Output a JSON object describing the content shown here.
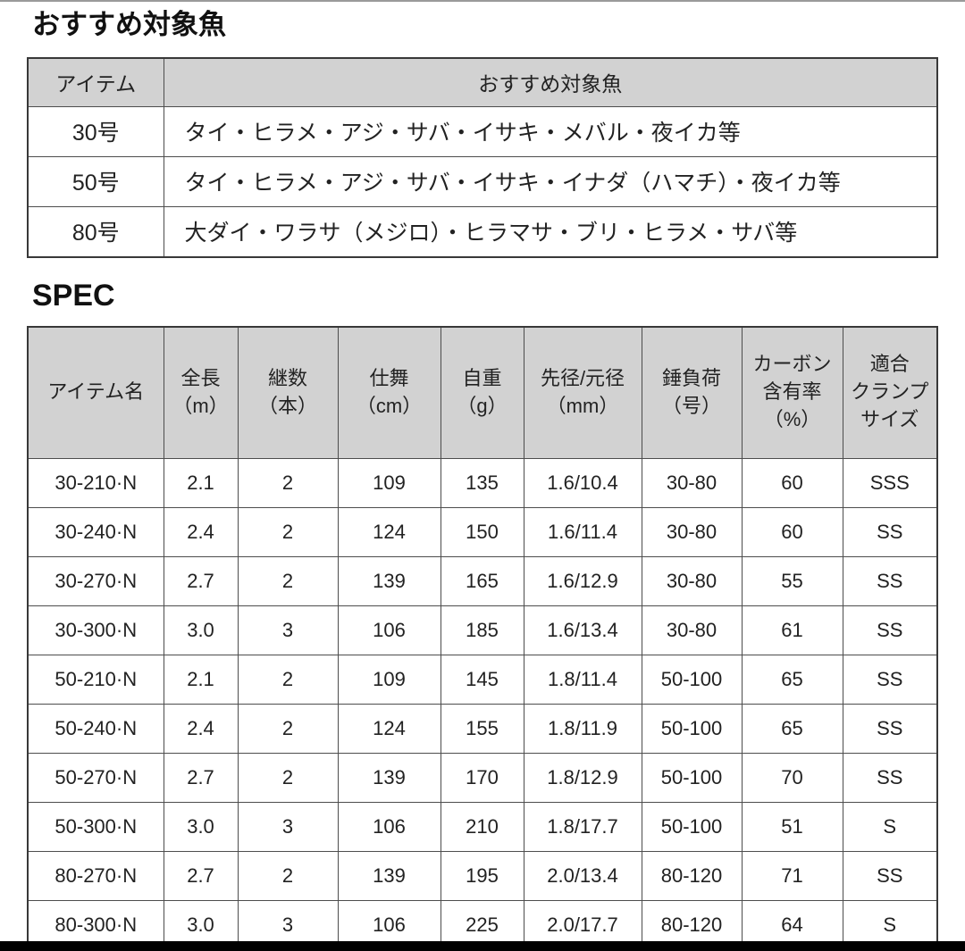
{
  "page": {
    "fish_section_title": "おすすめ対象魚",
    "spec_section_title": "SPEC"
  },
  "fish_table": {
    "columns": [
      "アイテム",
      "おすすめ対象魚"
    ],
    "rows": [
      [
        "30号",
        "タイ・ヒラメ・アジ・サバ・イサキ・メバル・夜イカ等"
      ],
      [
        "50号",
        "タイ・ヒラメ・アジ・サバ・イサキ・イナダ（ハマチ）・夜イカ等"
      ],
      [
        "80号",
        "大ダイ・ワラサ（メジロ）・ヒラマサ・ブリ・ヒラメ・サバ等"
      ]
    ]
  },
  "spec_table": {
    "columns": [
      "アイテム名",
      "全長\n（m）",
      "継数\n（本）",
      "仕舞\n（cm）",
      "自重\n（g）",
      "先径/元径\n（mm）",
      "錘負荷\n（号）",
      "カーボン\n含有率\n（%）",
      "適合\nクランプ\nサイズ"
    ],
    "rows": [
      [
        "30-210·N",
        "2.1",
        "2",
        "109",
        "135",
        "1.6/10.4",
        "30-80",
        "60",
        "SSS"
      ],
      [
        "30-240·N",
        "2.4",
        "2",
        "124",
        "150",
        "1.6/11.4",
        "30-80",
        "60",
        "SS"
      ],
      [
        "30-270·N",
        "2.7",
        "2",
        "139",
        "165",
        "1.6/12.9",
        "30-80",
        "55",
        "SS"
      ],
      [
        "30-300·N",
        "3.0",
        "3",
        "106",
        "185",
        "1.6/13.4",
        "30-80",
        "61",
        "SS"
      ],
      [
        "50-210·N",
        "2.1",
        "2",
        "109",
        "145",
        "1.8/11.4",
        "50-100",
        "65",
        "SS"
      ],
      [
        "50-240·N",
        "2.4",
        "2",
        "124",
        "155",
        "1.8/11.9",
        "50-100",
        "65",
        "SS"
      ],
      [
        "50-270·N",
        "2.7",
        "2",
        "139",
        "170",
        "1.8/12.9",
        "50-100",
        "70",
        "SS"
      ],
      [
        "50-300·N",
        "3.0",
        "3",
        "106",
        "210",
        "1.8/17.7",
        "50-100",
        "51",
        "S"
      ],
      [
        "80-270·N",
        "2.7",
        "2",
        "139",
        "195",
        "2.0/13.4",
        "80-120",
        "71",
        "SS"
      ],
      [
        "80-300·N",
        "3.0",
        "3",
        "106",
        "225",
        "2.0/17.7",
        "80-120",
        "64",
        "S"
      ]
    ]
  },
  "colors": {
    "header_bg": "#d2d2d2",
    "border": "#4d4d4d",
    "text": "#222222"
  }
}
